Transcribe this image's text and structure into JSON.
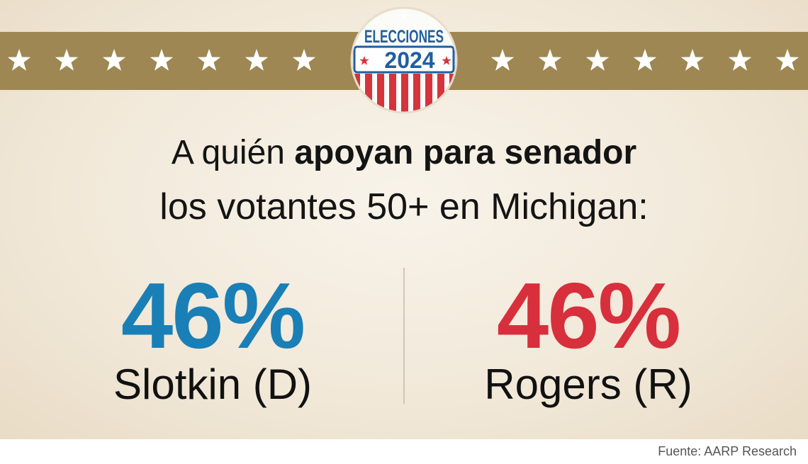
{
  "badge": {
    "top": "ELECCIONES",
    "year": "2024"
  },
  "title": {
    "plain": "A quién",
    "bold": "apoyan para senador",
    "line2": "los votantes 50+ en Michigan:"
  },
  "candidates": [
    {
      "percent": "46%",
      "name": "Slotkin (D)",
      "color": "#1a7fb6"
    },
    {
      "percent": "46%",
      "name": "Rogers (R)",
      "color": "#d82f3c"
    }
  ],
  "source": "Fuente: AARP Research"
}
